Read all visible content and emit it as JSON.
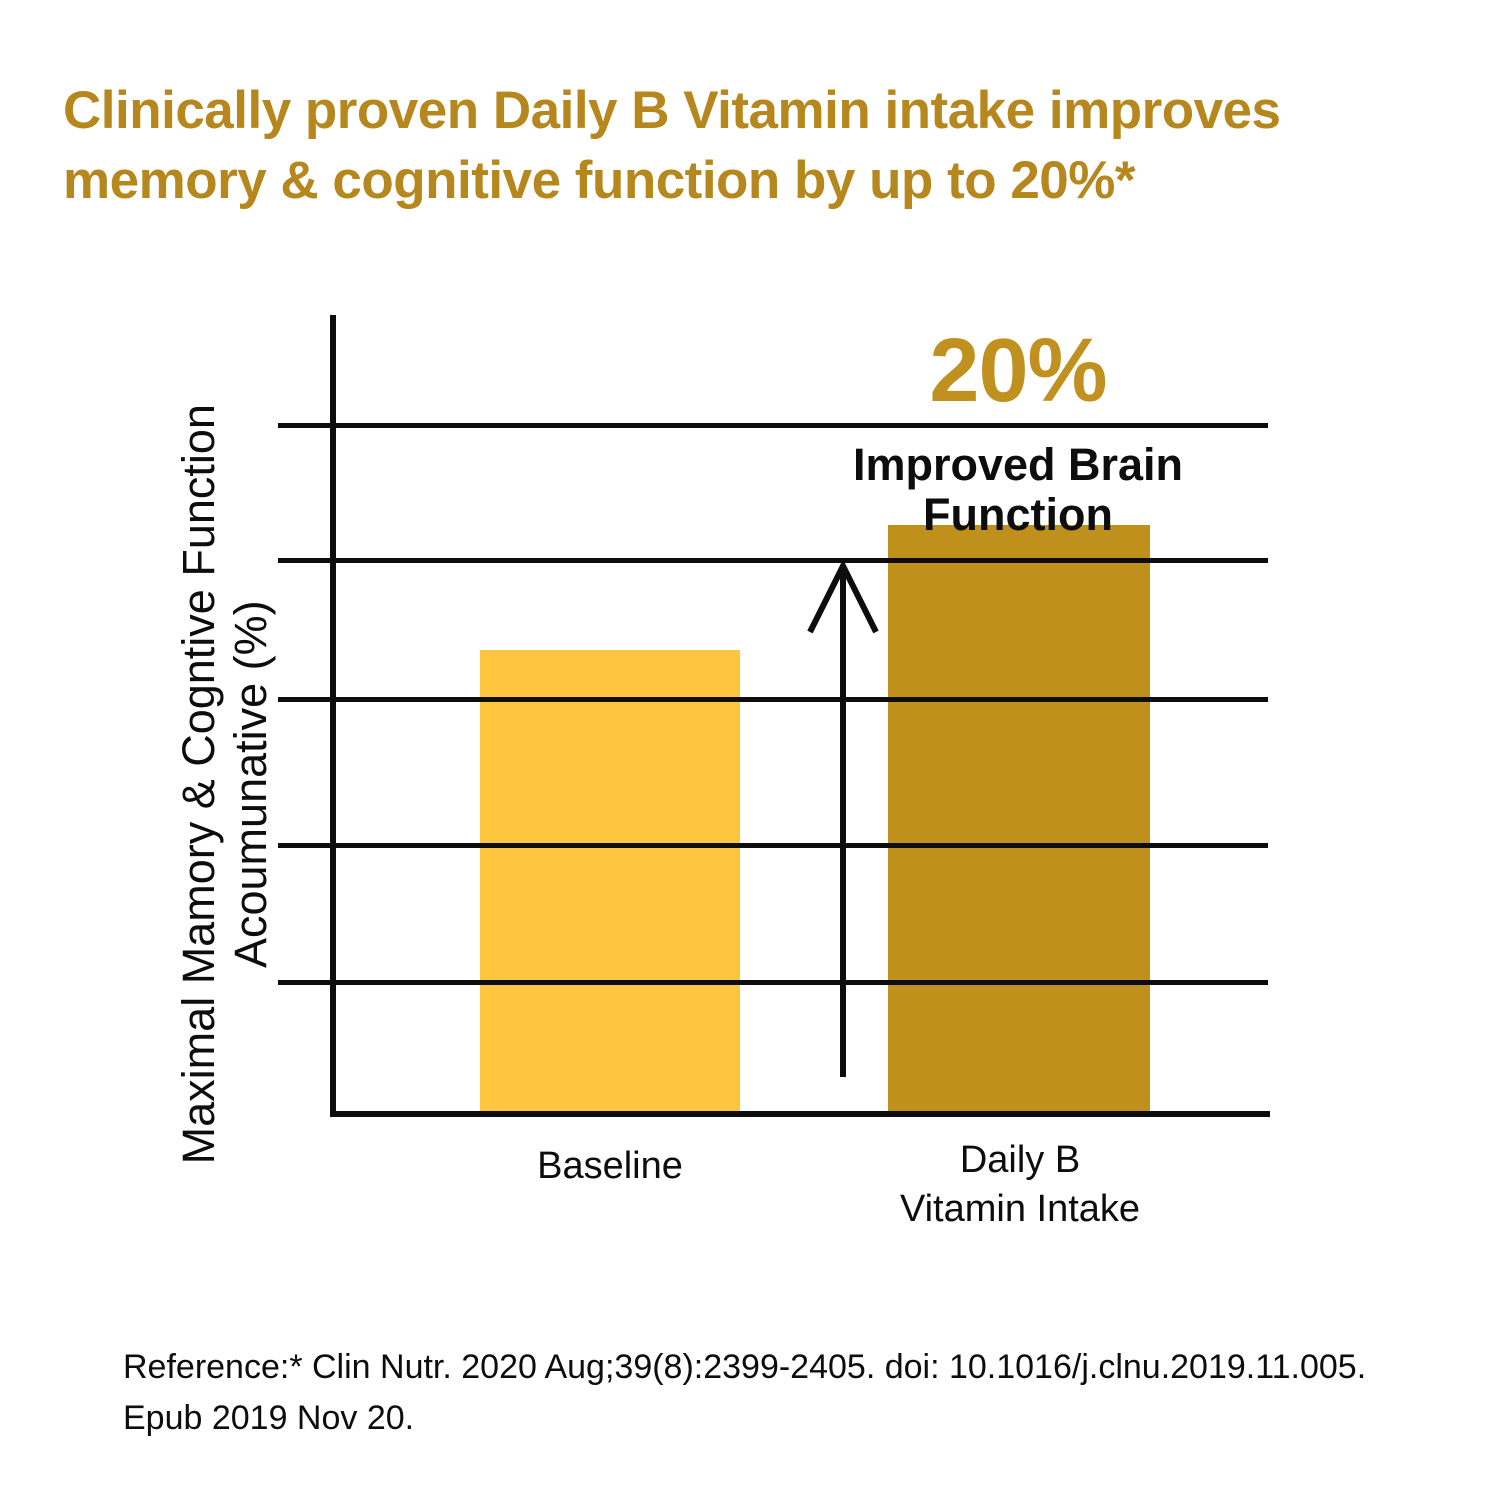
{
  "title": {
    "line1": "Clinically proven Daily B Vitamin intake improves",
    "line2": "memory & cognitive function by up to 20%*"
  },
  "colors": {
    "title_gold": "#B5871D",
    "accent_gold": "#C19120",
    "bar_baseline": "#FEC63E",
    "bar_daily_b": "#BF911C",
    "axis_black": "#0D0D0D",
    "background": "#FFFFFF"
  },
  "chart": {
    "y_axis_title_line1": "Maximal Mamory & Cogntive Function",
    "y_axis_title_line2": "Acoumunative (%)",
    "annotation": {
      "percent": "20%",
      "line1": "Improved Brain",
      "line2": "Function"
    },
    "x_labels": {
      "baseline": "Baseline",
      "daily_b_line1": "Daily B",
      "daily_b_line2": "Vitamin Intake"
    }
  },
  "chart_data": {
    "type": "bar",
    "categories": [
      "Baseline",
      "Daily B Vitamin Intake"
    ],
    "values": [
      67,
      85
    ],
    "bar_colors": [
      "#FEC63E",
      "#BF911C"
    ],
    "title": "Clinically proven Daily B Vitamin intake improves memory & cognitive function by up to 20%*",
    "xlabel": "",
    "ylabel": "Maximal Mamory & Cogntive Function Acoumunative (%)",
    "ylim": [
      0,
      100
    ],
    "ytick_labels_visible": false,
    "grid": true,
    "gridline_count": 5,
    "legend": false,
    "annotation": "20% Improved Brain Function"
  },
  "reference": {
    "line1": "Reference:* Clin Nutr. 2020 Aug;39(8):2399-2405. doi: 10.1016/j.clnu.2019.11.005.",
    "line2": "Epub 2019 Nov 20."
  }
}
